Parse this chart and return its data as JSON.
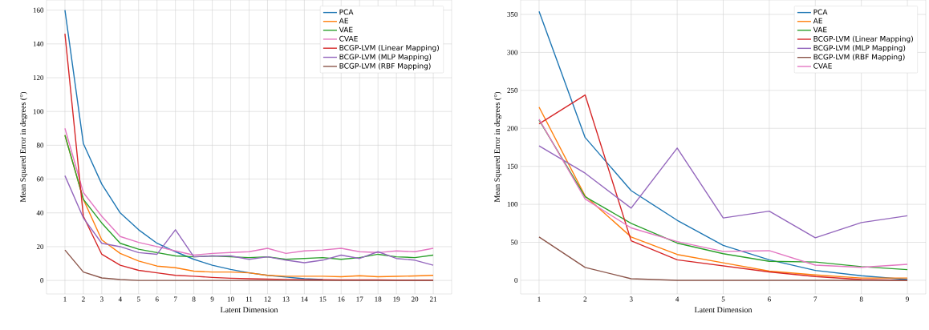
{
  "chart_data": [
    {
      "type": "line",
      "xlabel": "Latent Dimension",
      "ylabel": "Mean Squared Error in degrees (°)",
      "grid": true,
      "legend": "top right",
      "x": [
        1,
        2,
        3,
        4,
        5,
        6,
        7,
        8,
        9,
        10,
        11,
        12,
        13,
        14,
        15,
        16,
        17,
        18,
        19,
        20,
        21
      ],
      "xlim": [
        0,
        22
      ],
      "ylim": [
        -8,
        166
      ],
      "xticks": [
        1,
        2,
        3,
        4,
        5,
        6,
        7,
        8,
        9,
        10,
        11,
        12,
        13,
        14,
        15,
        16,
        17,
        18,
        19,
        20,
        21
      ],
      "yticks": [
        0,
        20,
        40,
        60,
        80,
        100,
        120,
        140,
        160
      ],
      "series": [
        {
          "name": "PCA",
          "color": "#1f77b4",
          "values": [
            160,
            81,
            57,
            40,
            30,
            22,
            17,
            12.5,
            9,
            6.5,
            4.5,
            3,
            2,
            1,
            0.5,
            null,
            null,
            null,
            null,
            null,
            null
          ]
        },
        {
          "name": "AE",
          "color": "#ff7f0e",
          "values": [
            86,
            48,
            24,
            16,
            11.5,
            8.5,
            7.5,
            5.5,
            5,
            5,
            4.5,
            3,
            2.5,
            2.5,
            2.5,
            2.2,
            2.8,
            2.2,
            2.4,
            2.7,
            3
          ]
        },
        {
          "name": "VAE",
          "color": "#2ca02c",
          "values": [
            86,
            48,
            34,
            22,
            18.5,
            16.5,
            14.5,
            14,
            14.5,
            14,
            13.5,
            14,
            12.5,
            13,
            13.5,
            12.5,
            13.5,
            15.5,
            14,
            13.5,
            15
          ]
        },
        {
          "name": "CVAE",
          "color": "#e377c2",
          "values": [
            90,
            52,
            38,
            26,
            22.5,
            20,
            17.5,
            15,
            16,
            16.5,
            17,
            19,
            16,
            17.5,
            18,
            19,
            17,
            16.5,
            17.5,
            17,
            19
          ]
        },
        {
          "name": "BCGP-LVM (Linear Mapping)",
          "color": "#d62728",
          "values": [
            146,
            38,
            15.5,
            9,
            6,
            4.5,
            3,
            2.5,
            1.8,
            1.3,
            1,
            0.8,
            0.6,
            0.5,
            0.4,
            0.3,
            0.3,
            0.3,
            0.2,
            0.2,
            0.2
          ]
        },
        {
          "name": "BCGP-LVM (MLP Mapping)",
          "color": "#9467bd",
          "values": [
            62,
            37,
            22,
            20,
            16.5,
            15.5,
            30,
            14,
            14.5,
            14.5,
            12.5,
            14,
            12,
            10.5,
            12,
            15,
            13,
            17,
            13,
            12,
            9
          ]
        },
        {
          "name": "BCGP-LVM (RBF Mapping)",
          "color": "#8c564b",
          "values": [
            18,
            5,
            1.5,
            0.5,
            0,
            0,
            0,
            0,
            0,
            0,
            0,
            0,
            0,
            0,
            0,
            0,
            0,
            0,
            0,
            0,
            0
          ]
        }
      ]
    },
    {
      "type": "line",
      "xlabel": "Latent Dimension",
      "ylabel": "Mean Squared Error in degrees (°)",
      "grid": true,
      "legend": "top right",
      "x": [
        1,
        2,
        3,
        4,
        5,
        6,
        7,
        8,
        9
      ],
      "xlim": [
        0.6,
        9.4
      ],
      "ylim": [
        -18,
        369
      ],
      "xticks": [
        1,
        2,
        3,
        4,
        5,
        6,
        7,
        8,
        9
      ],
      "yticks": [
        0,
        50,
        100,
        150,
        200,
        250,
        300,
        350
      ],
      "series": [
        {
          "name": "PCA",
          "color": "#1f77b4",
          "values": [
            354,
            188,
            118,
            79,
            46,
            27,
            13,
            6,
            1
          ]
        },
        {
          "name": "AE",
          "color": "#ff7f0e",
          "values": [
            228,
            111,
            57,
            34,
            23,
            12,
            7,
            3,
            3
          ]
        },
        {
          "name": "VAE",
          "color": "#2ca02c",
          "values": [
            211,
            110,
            75,
            49,
            35,
            25,
            24,
            18,
            14
          ]
        },
        {
          "name": "BCGP-LVM (Linear Mapping)",
          "color": "#d62728",
          "values": [
            206,
            244,
            52,
            27,
            19,
            11,
            5,
            1,
            0
          ]
        },
        {
          "name": "BCGP-LVM (MLP Mapping)",
          "color": "#9467bd",
          "values": [
            177,
            141,
            95,
            174,
            82,
            91,
            56,
            76,
            85
          ]
        },
        {
          "name": "BCGP-LVM (RBF Mapping)",
          "color": "#8c564b",
          "values": [
            57,
            17,
            2,
            0,
            0,
            0,
            0,
            0,
            0
          ]
        },
        {
          "name": "CVAE",
          "color": "#e377c2",
          "values": [
            212,
            107,
            69,
            51,
            38,
            39,
            20,
            17,
            21
          ]
        }
      ]
    }
  ]
}
